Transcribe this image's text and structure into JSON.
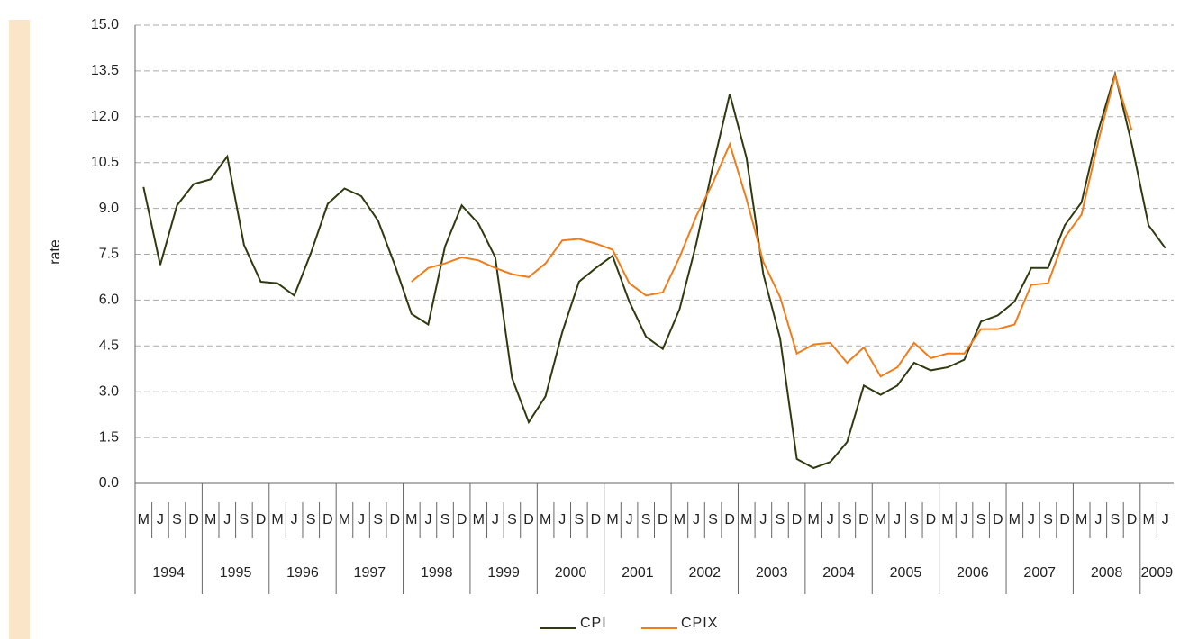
{
  "chart_data": {
    "type": "line",
    "y_label": "rate",
    "categories": [
      "M",
      "J",
      "S",
      "D",
      "M",
      "J",
      "S",
      "D",
      "M",
      "J",
      "S",
      "D",
      "M",
      "J",
      "S",
      "D",
      "M",
      "J",
      "S",
      "D",
      "M",
      "J",
      "S",
      "D",
      "M",
      "J",
      "S",
      "D",
      "M",
      "J",
      "S",
      "D",
      "M",
      "J",
      "S",
      "D",
      "M",
      "J",
      "S",
      "D",
      "M",
      "J",
      "S",
      "D",
      "M",
      "J",
      "S",
      "D",
      "M",
      "J",
      "S",
      "D",
      "M",
      "J",
      "S",
      "D",
      "M",
      "J",
      "S",
      "D",
      "M",
      "J"
    ],
    "years": [
      "1994",
      "1995",
      "1996",
      "1997",
      "1998",
      "1999",
      "2000",
      "2001",
      "2002",
      "2003",
      "2004",
      "2005",
      "2006",
      "2007",
      "2008",
      "2009"
    ],
    "series": [
      {
        "name": "CPI",
        "color": "#2f3a10",
        "values": [
          9.7,
          7.15,
          9.1,
          9.8,
          9.95,
          10.7,
          7.8,
          6.6,
          6.55,
          6.15,
          7.55,
          9.15,
          9.65,
          9.4,
          8.6,
          7.15,
          5.55,
          5.2,
          7.75,
          9.1,
          8.5,
          7.4,
          3.45,
          2.0,
          2.85,
          4.95,
          6.6,
          7.05,
          7.45,
          5.95,
          4.8,
          4.4,
          5.7,
          7.85,
          10.4,
          12.75,
          10.65,
          6.85,
          4.75,
          0.8,
          0.5,
          0.7,
          1.35,
          3.2,
          2.9,
          3.2,
          3.95,
          3.7,
          3.8,
          4.05,
          5.3,
          5.5,
          5.95,
          7.05,
          7.05,
          8.45,
          9.2,
          11.55,
          13.4,
          11.1,
          8.45,
          7.7
        ]
      },
      {
        "name": "CPIX",
        "color": "#f07d1a",
        "values": [
          null,
          null,
          null,
          null,
          null,
          null,
          null,
          null,
          null,
          null,
          null,
          null,
          null,
          null,
          null,
          null,
          6.6,
          7.05,
          7.2,
          7.4,
          7.3,
          7.05,
          6.85,
          6.75,
          7.2,
          7.95,
          8.0,
          7.85,
          7.65,
          6.55,
          6.15,
          6.25,
          7.4,
          8.75,
          9.85,
          11.1,
          9.3,
          7.25,
          6.1,
          4.25,
          4.55,
          4.6,
          3.95,
          4.45,
          3.5,
          3.8,
          4.6,
          4.1,
          4.25,
          4.25,
          5.05,
          5.05,
          5.2,
          6.5,
          6.55,
          8.05,
          8.8,
          11.2,
          13.35,
          11.55,
          null,
          null
        ]
      }
    ],
    "ylim": [
      0,
      15
    ],
    "yticks": [
      {
        "value": 0,
        "label": "0.0"
      },
      {
        "value": 1.5,
        "label": "1.5"
      },
      {
        "value": 3,
        "label": "3.0"
      },
      {
        "value": 4.5,
        "label": "4.5"
      },
      {
        "value": 6,
        "label": "6.0"
      },
      {
        "value": 7.5,
        "label": "7.5"
      },
      {
        "value": 9,
        "label": "9.0"
      },
      {
        "value": 10.5,
        "label": "10.5"
      },
      {
        "value": 12,
        "label": "12.0"
      },
      {
        "value": 13.5,
        "label": "13.5"
      },
      {
        "value": 15,
        "label": "15.0"
      }
    ],
    "grid": true
  }
}
